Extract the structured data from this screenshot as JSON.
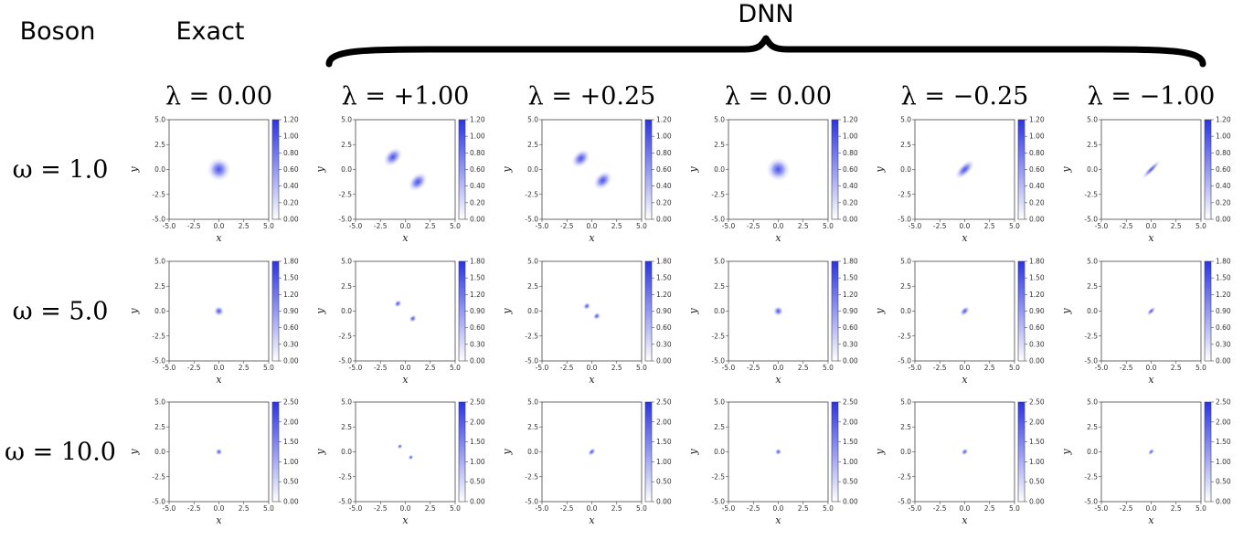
{
  "headers": {
    "row_header": "Boson",
    "exact_header": "Exact",
    "dnn_header": "DNN"
  },
  "colors": {
    "density": "#2a33e6",
    "background": "#ffffff",
    "axis": "#444444"
  },
  "chart_data": {
    "type": "heatmap",
    "grid": false,
    "xlabel": "x",
    "ylabel": "y",
    "xlim": [
      -5.0,
      5.0
    ],
    "ylim": [
      -5.0,
      5.0
    ],
    "axis_ticks": [
      "-5.0",
      "-2.5",
      "0.0",
      "2.5",
      "5.0"
    ],
    "columns": [
      {
        "group": "Exact",
        "lambda_label": "λ = 0.00"
      },
      {
        "group": "DNN",
        "lambda_label": "λ = +1.00"
      },
      {
        "group": "DNN",
        "lambda_label": "λ = +0.25"
      },
      {
        "group": "DNN",
        "lambda_label": "λ = 0.00"
      },
      {
        "group": "DNN",
        "lambda_label": "λ = −0.25"
      },
      {
        "group": "DNN",
        "lambda_label": "λ = −1.00"
      }
    ],
    "rows": [
      {
        "omega_label": "ω = 1.0",
        "colorbar_ticks": [
          "0.00",
          "0.20",
          "0.40",
          "0.60",
          "0.80",
          "1.00",
          "1.20"
        ],
        "colorbar_max": 1.2,
        "panels": [
          {
            "shape": "single",
            "sep": 0,
            "width": 1.15,
            "elong": 1.0
          },
          {
            "shape": "double",
            "sep": 1.25,
            "width": 0.75,
            "elong": 1.45
          },
          {
            "shape": "double",
            "sep": 1.1,
            "width": 0.75,
            "elong": 1.4
          },
          {
            "shape": "single",
            "sep": 0,
            "width": 1.15,
            "elong": 1.0
          },
          {
            "shape": "single",
            "sep": 0,
            "width": 0.55,
            "elong": 2.2
          },
          {
            "shape": "single",
            "sep": 0,
            "width": 0.28,
            "elong": 4.5
          }
        ]
      },
      {
        "omega_label": "ω = 5.0",
        "colorbar_ticks": [
          "0.00",
          "0.30",
          "0.60",
          "0.90",
          "1.20",
          "1.50",
          "1.80"
        ],
        "colorbar_max": 1.8,
        "panels": [
          {
            "shape": "single",
            "sep": 0,
            "width": 0.5,
            "elong": 1.0
          },
          {
            "shape": "double",
            "sep": 0.75,
            "width": 0.33,
            "elong": 1.25
          },
          {
            "shape": "double",
            "sep": 0.5,
            "width": 0.33,
            "elong": 1.2
          },
          {
            "shape": "single",
            "sep": 0,
            "width": 0.5,
            "elong": 1.0
          },
          {
            "shape": "single",
            "sep": 0,
            "width": 0.36,
            "elong": 1.6
          },
          {
            "shape": "single",
            "sep": 0,
            "width": 0.26,
            "elong": 2.2
          }
        ]
      },
      {
        "omega_label": "ω = 10.0",
        "colorbar_ticks": [
          "0.00",
          "0.50",
          "1.00",
          "1.50",
          "2.00",
          "2.50"
        ],
        "colorbar_max": 2.5,
        "panels": [
          {
            "shape": "single",
            "sep": 0,
            "width": 0.35,
            "elong": 1.0
          },
          {
            "shape": "double",
            "sep": 0.55,
            "width": 0.24,
            "elong": 1.2
          },
          {
            "shape": "single",
            "sep": 0,
            "width": 0.3,
            "elong": 1.6
          },
          {
            "shape": "single",
            "sep": 0,
            "width": 0.33,
            "elong": 1.0
          },
          {
            "shape": "single",
            "sep": 0,
            "width": 0.3,
            "elong": 1.3
          },
          {
            "shape": "single",
            "sep": 0,
            "width": 0.24,
            "elong": 1.7
          }
        ]
      }
    ]
  }
}
